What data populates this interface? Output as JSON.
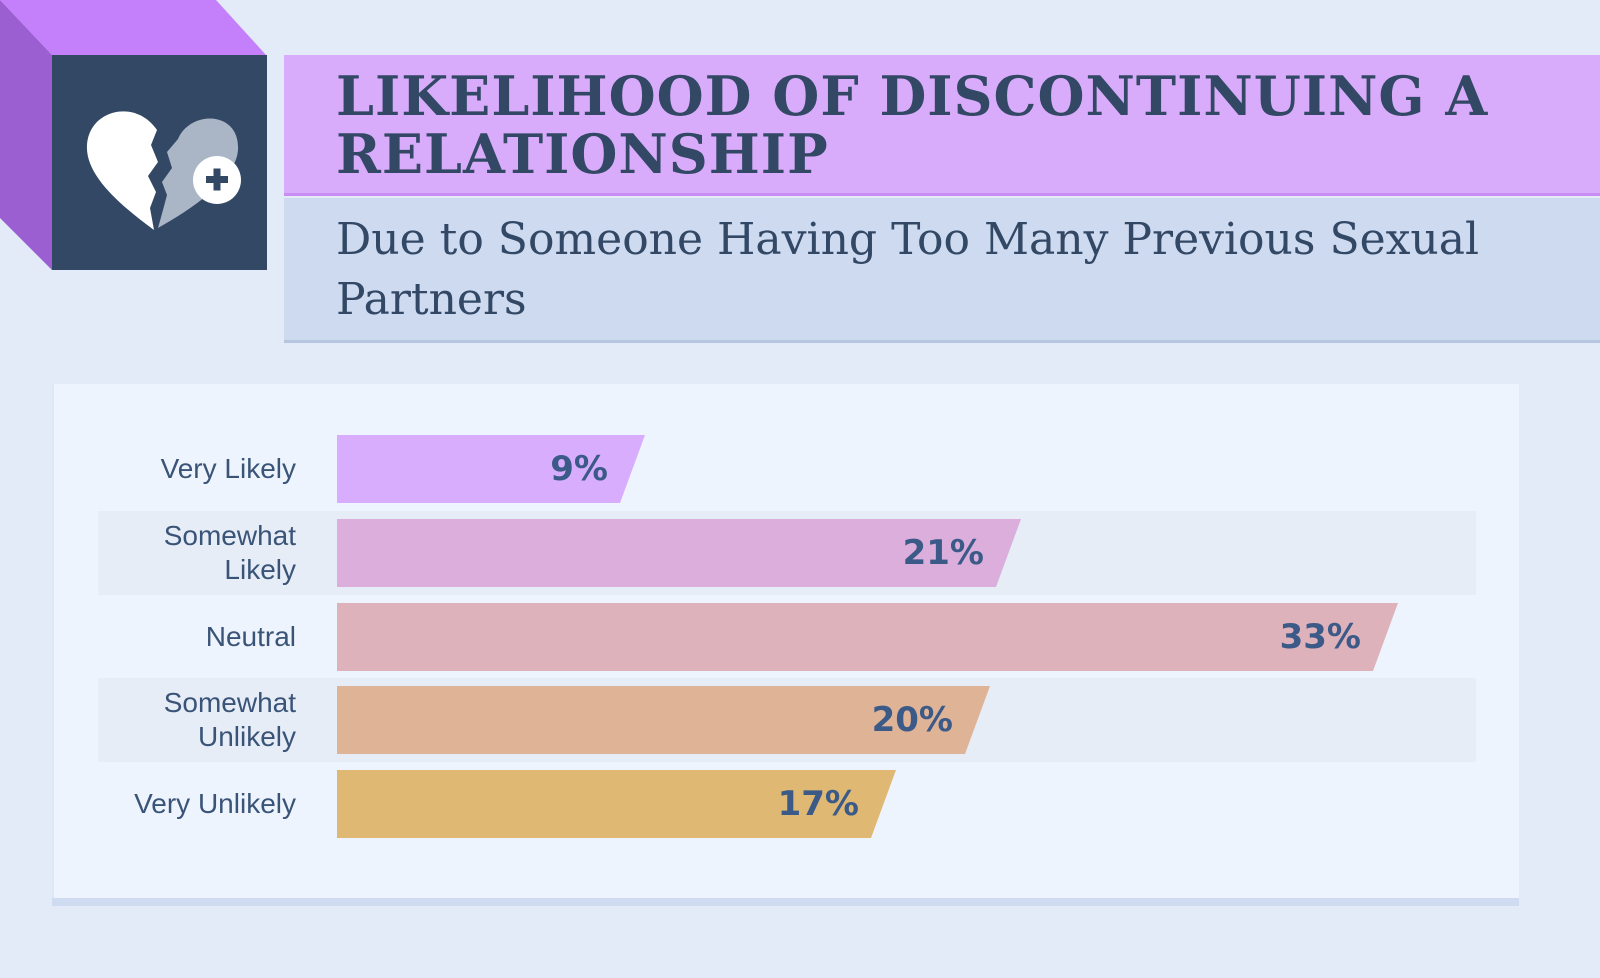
{
  "header": {
    "title": "LIKELIHOOD OF DISCONTINUING A RELATIONSHIP",
    "subtitle": "Due to Someone Having Too Many Previous Sexual Partners",
    "icon": "broken-heart-plus-icon"
  },
  "colors": {
    "background": "#e2ebf7",
    "title_band": "#d9acfb",
    "subtitle_band": "#cedaf0",
    "icon_box": "#324865",
    "cube_top": "#c47ffb",
    "cube_side": "#9c5fd1",
    "text": "#324865",
    "value_text": "#3b5a87"
  },
  "chart_data": {
    "type": "bar",
    "orientation": "horizontal",
    "title": "Likelihood of Discontinuing a Relationship",
    "subtitle": "Due to Someone Having Too Many Previous Sexual Partners",
    "categories": [
      "Very Likely",
      "Somewhat Likely",
      "Neutral",
      "Somewhat Unlikely",
      "Very Unlikely"
    ],
    "values": [
      9,
      21,
      33,
      20,
      17
    ],
    "value_labels": [
      "9%",
      "21%",
      "33%",
      "20%",
      "17%"
    ],
    "bar_colors": [
      "#d9adfd",
      "#dbaedb",
      "#deb2bb",
      "#dfb396",
      "#dfb974"
    ],
    "xlabel": "",
    "ylabel": "",
    "unit": "%",
    "grid": false,
    "legend": "none"
  },
  "rows": [
    {
      "label_lines": [
        "Very Likely"
      ],
      "value": "9%",
      "color": "#d9adfd",
      "striped": false
    },
    {
      "label_lines": [
        "Somewhat",
        "Likely"
      ],
      "value": "21%",
      "color": "#dbaedb",
      "striped": true
    },
    {
      "label_lines": [
        "Neutral"
      ],
      "value": "33%",
      "color": "#deb2bb",
      "striped": false
    },
    {
      "label_lines": [
        "Somewhat",
        "Unlikely"
      ],
      "value": "20%",
      "color": "#dfb396",
      "striped": true
    },
    {
      "label_lines": [
        "Very Unlikely"
      ],
      "value": "17%",
      "color": "#dfb974",
      "striped": false
    }
  ]
}
